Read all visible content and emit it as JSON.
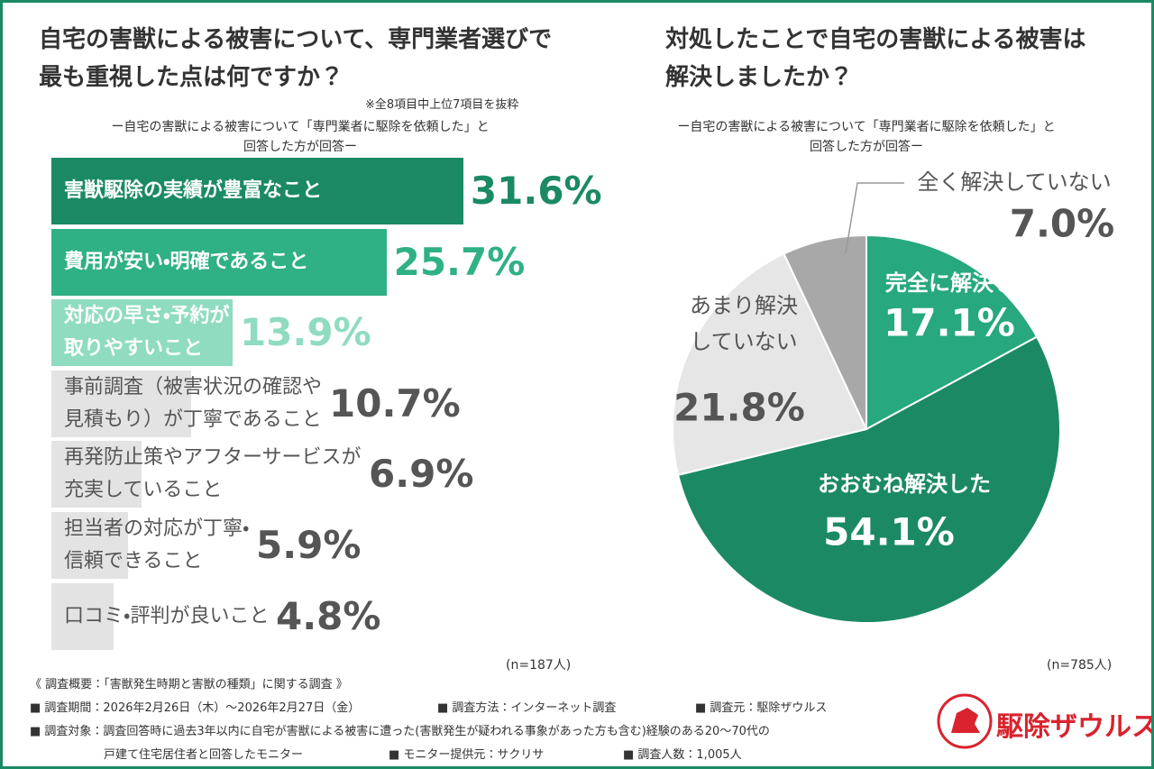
{
  "chart_data": [
    {
      "type": "barh",
      "title": "自宅の害獣による被害について、専門業者選びで最も重視した点は何ですか？",
      "note": "※全8項目中上位7項目を抜粋",
      "subtitle": [
        "ー自宅の害獣による被害について「専門業者に駆除を依頼した」と",
        "回答した方が回答ー"
      ],
      "categories": [
        [
          "害獣駆除の実績が豊富なこと"
        ],
        [
          "費用が安い・明確であること"
        ],
        [
          "対応の早さ・予約が",
          "取りやすいこと"
        ],
        [
          "事前調査（被害状況の確認や",
          "見積もり）が丁寧であること"
        ],
        [
          "再発防止策やアフターサービスが",
          "充実していること"
        ],
        [
          "担当者の対応が丁寧・",
          "信頼できること"
        ],
        [
          "口コミ・評判が良いこと"
        ]
      ],
      "values": [
        31.6,
        25.7,
        13.9,
        10.7,
        6.9,
        5.9,
        4.8
      ],
      "value_labels": [
        "31.6%",
        "25.7%",
        "13.9%",
        "10.7%",
        "6.9%",
        "5.9%",
        "4.8%"
      ],
      "colors": [
        "#1b8a64",
        "#2fb085",
        "#8fdcc0",
        "#e3e3e3",
        "#e3e3e3",
        "#e3e3e3",
        "#e3e3e3"
      ],
      "label_colors": [
        "#ffffff",
        "#ffffff",
        "#ffffff",
        "#555555",
        "#555555",
        "#555555",
        "#555555"
      ],
      "value_colors": [
        "#1b8a64",
        "#2fb085",
        "#8fdcc0",
        "#555555",
        "#555555",
        "#555555",
        "#555555"
      ],
      "n": "(n=187人)"
    },
    {
      "type": "pie",
      "title": "対処したことで自宅の害獣による被害は解決しましたか？",
      "subtitle": [
        "ー自宅の害獣による被害について「専門業者に駆除を依頼した」と",
        "回答した方が回答ー"
      ],
      "categories": [
        [
          "完全に解決した"
        ],
        [
          "おおむね解決した"
        ],
        [
          "あまり解決",
          "していない"
        ],
        [
          "全く解決していない"
        ]
      ],
      "values": [
        17.1,
        54.1,
        21.8,
        7.0
      ],
      "value_labels": [
        "17.1%",
        "54.1%",
        "21.8%",
        "7.0%"
      ],
      "colors": [
        "#27a87e",
        "#1b8a64",
        "#e6e6e6",
        "#a8a8a8"
      ],
      "label_colors": [
        "#ffffff",
        "#ffffff",
        "#555555",
        "#555555"
      ],
      "n": "(n=785人)"
    }
  ],
  "footer": {
    "heading": "《 調査概要：「害獣発生時期と害獣の種類」に関する調査 》",
    "items": [
      "■ 調査期間：2026年2月26日（木）～2026年2月27日（金）",
      "■ 調査方法：インターネット調査",
      "■ 調査元：駆除ザウルス",
      "■ 調査対象：調査回答時に過去3年以内に自宅が害獣による被害に遭った(害獣発生が疑われる事象があった方も含む)経験のある20～70代の",
      "戸建て住宅居住者と回答したモニター",
      "■ モニター提供元：サクリサ",
      "■ 調査人数：1,005人"
    ]
  },
  "logo": "駆除ザウルス"
}
